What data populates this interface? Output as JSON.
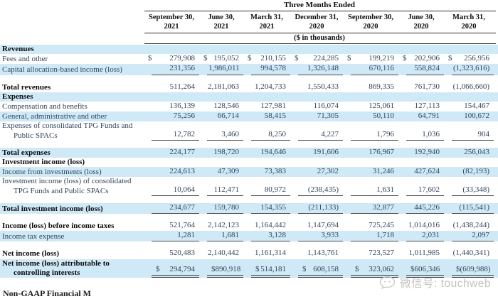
{
  "table": {
    "title": "Three Months Ended",
    "subtitle": "($ in thousands)",
    "columns": [
      {
        "line1": "September 30,",
        "line2": "2021"
      },
      {
        "line1": "June 30,",
        "line2": "2021"
      },
      {
        "line1": "March 31,",
        "line2": "2021"
      },
      {
        "line1": "December 31,",
        "line2": "2020"
      },
      {
        "line1": "September 30,",
        "line2": "2020"
      },
      {
        "line1": "June 30,",
        "line2": "2020"
      },
      {
        "line1": "March 31,",
        "line2": "2020"
      }
    ],
    "rows": [
      {
        "type": "section",
        "label": "Revenues",
        "bg": "blue"
      },
      {
        "type": "data",
        "label": "Fees and other",
        "dollar": true,
        "bg": "white",
        "values": [
          "279,908",
          "195,052",
          "210,155",
          "224,285",
          "199,219",
          "202,906",
          "256,956"
        ]
      },
      {
        "type": "data",
        "label": "Capital allocation-based income (loss)",
        "bg": "blue",
        "underline": "single",
        "values": [
          "231,356",
          "1,986,011",
          "994,578",
          "1,326,148",
          "670,116",
          "558,824",
          "(1,323,616)"
        ]
      },
      {
        "type": "spacer"
      },
      {
        "type": "data",
        "label": "Total revenues",
        "bold": true,
        "bg": "white",
        "values": [
          "511,264",
          "2,181,063",
          "1,204,733",
          "1,550,433",
          "869,335",
          "761,730",
          "(1,066,660)"
        ]
      },
      {
        "type": "section",
        "label": "Expenses",
        "bg": "blue"
      },
      {
        "type": "data",
        "label": "Compensation and benefits",
        "bg": "white",
        "values": [
          "136,139",
          "128,546",
          "127,981",
          "116,074",
          "125,061",
          "127,113",
          "154,467"
        ]
      },
      {
        "type": "data",
        "label": "General, administrative and other",
        "bg": "blue",
        "values": [
          "75,256",
          "66,714",
          "58,415",
          "71,305",
          "50,110",
          "64,791",
          "100,672"
        ]
      },
      {
        "type": "data",
        "label": "Expenses of consolidated TPG Funds and",
        "label2": "Public SPACs",
        "bg": "white",
        "underline": "single",
        "values": [
          "12,782",
          "3,460",
          "8,250",
          "4,227",
          "1,796",
          "1,036",
          "904"
        ]
      },
      {
        "type": "spacer"
      },
      {
        "type": "data",
        "label": "Total expenses",
        "bold": true,
        "bg": "blue",
        "values": [
          "224,177",
          "198,720",
          "194,646",
          "191,606",
          "176,967",
          "192,940",
          "256,043"
        ]
      },
      {
        "type": "section",
        "label": "Investment income (loss)",
        "bg": "white"
      },
      {
        "type": "data",
        "label": "Income from investments (loss)",
        "bg": "blue",
        "values": [
          "224,613",
          "47,309",
          "73,383",
          "27,302",
          "31,246",
          "427,624",
          "(82,193)"
        ]
      },
      {
        "type": "data",
        "label": "Investment income (loss) of consolidated",
        "label2": "TPG Funds and Public SPACs",
        "bg": "white",
        "underline": "single",
        "values": [
          "10,064",
          "112,471",
          "80,972",
          "(238,435)",
          "1,631",
          "17,602",
          "(33,348)"
        ]
      },
      {
        "type": "spacer"
      },
      {
        "type": "data",
        "label": "Total investment income (loss)",
        "bold": true,
        "bg": "blue",
        "underline": "single",
        "values": [
          "234,677",
          "159,780",
          "154,355",
          "(211,133)",
          "32,877",
          "445,226",
          "(115,541)"
        ]
      },
      {
        "type": "spacer"
      },
      {
        "type": "data",
        "label": "Income (loss) before income taxes",
        "bold": true,
        "bg": "white",
        "values": [
          "521,764",
          "2,142,123",
          "1,164,442",
          "1,147,694",
          "725,245",
          "1,014,016",
          "(1,438,244)"
        ]
      },
      {
        "type": "data",
        "label": "Income tax expense",
        "bg": "blue",
        "underline": "single",
        "values": [
          "1,281",
          "1,681",
          "3,128",
          "3,933",
          "1,718",
          "2,031",
          "2,097"
        ]
      },
      {
        "type": "spacer"
      },
      {
        "type": "data",
        "label": "Net income (loss)",
        "bold": true,
        "bg": "white",
        "values": [
          "520,483",
          "2,140,442",
          "1,161,314",
          "1,143,761",
          "723,527",
          "1,011,985",
          "(1,440,341)"
        ]
      },
      {
        "type": "data",
        "label": "Net income (loss) attributable to",
        "label2": "controlling interests",
        "bold": true,
        "dollar": true,
        "bg": "blue",
        "underline": "double",
        "values": [
          "294,794",
          "890,918",
          "514,181",
          "608,158",
          "323,062",
          "606,346",
          "(609,988)"
        ]
      }
    ]
  },
  "footer": {
    "note_partial": "Non-GAAP Financial M",
    "watermark_text": "微信号: touchweb"
  },
  "colors": {
    "stripe_blue": "#cfe9f7",
    "rule": "#2f2f2f",
    "watermark_gray": "#c2c2c2"
  }
}
